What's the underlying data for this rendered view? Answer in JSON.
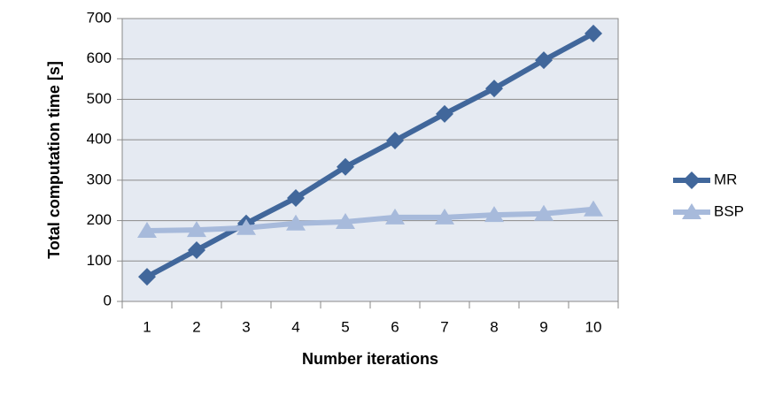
{
  "chart_data": {
    "type": "line",
    "x_label": "Number iterations",
    "y_label": "Total computation time [s]",
    "categories": [
      "1",
      "2",
      "3",
      "4",
      "5",
      "6",
      "7",
      "8",
      "9",
      "10"
    ],
    "series": [
      {
        "name": "MR",
        "color": "#41679b",
        "marker": "diamond",
        "values": [
          61,
          127,
          193,
          256,
          333,
          398,
          464,
          527,
          597,
          663
        ]
      },
      {
        "name": "BSP",
        "color": "#a7badb",
        "marker": "triangle",
        "values": [
          175,
          177,
          182,
          193,
          197,
          208,
          208,
          214,
          217,
          228
        ]
      }
    ],
    "ylim": [
      0,
      700
    ],
    "yticks": [
      0,
      100,
      200,
      300,
      400,
      500,
      600,
      700
    ],
    "grid": true,
    "legend": "right"
  }
}
